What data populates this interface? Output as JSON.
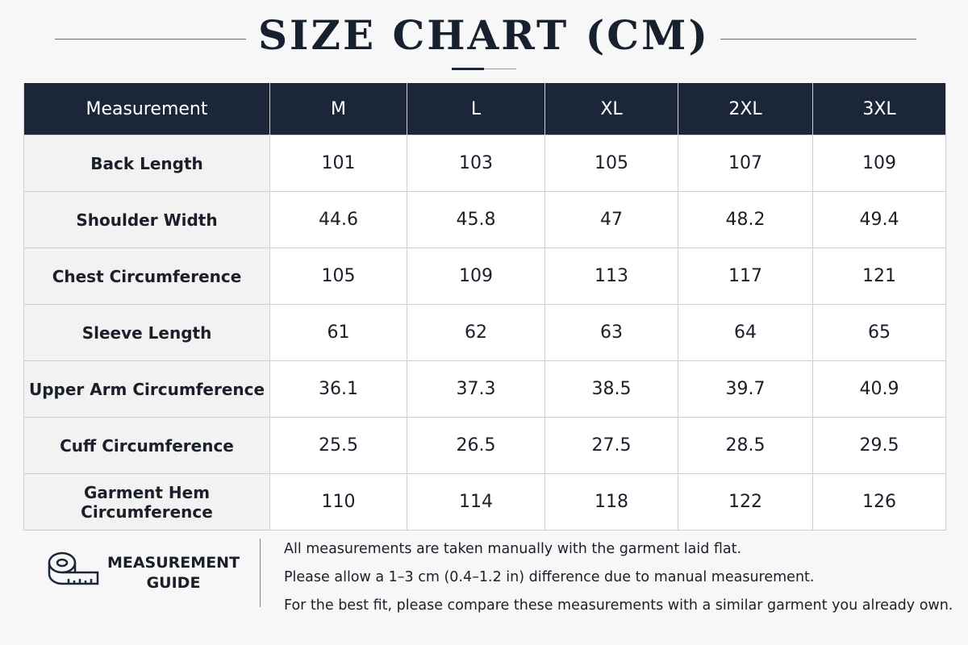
{
  "header": {
    "title": "SIZE CHART (CM)"
  },
  "table": {
    "columns": [
      "Measurement",
      "M",
      "L",
      "XL",
      "2XL",
      "3XL"
    ],
    "rows": [
      [
        "Back Length",
        "101",
        "103",
        "105",
        "107",
        "109"
      ],
      [
        "Shoulder Width",
        "44.6",
        "45.8",
        "47",
        "48.2",
        "49.4"
      ],
      [
        "Chest Circumference",
        "105",
        "109",
        "113",
        "117",
        "121"
      ],
      [
        "Sleeve Length",
        "61",
        "62",
        "63",
        "64",
        "65"
      ],
      [
        "Upper Arm Circumference",
        "36.1",
        "37.3",
        "38.5",
        "39.7",
        "40.9"
      ],
      [
        "Cuff Circumference",
        "25.5",
        "26.5",
        "27.5",
        "28.5",
        "29.5"
      ],
      [
        "Garment Hem Circumference",
        "110",
        "114",
        "118",
        "122",
        "126"
      ]
    ]
  },
  "guide": {
    "label": [
      "MEASUREMENT",
      "GUIDE"
    ],
    "notes": [
      "All measurements are taken manually with the garment laid flat.",
      "Please allow a 1–3 cm (0.4–1.2 in) difference due to manual measurement.",
      "For the best fit, please compare these measurements with a similar garment you already own."
    ]
  }
}
